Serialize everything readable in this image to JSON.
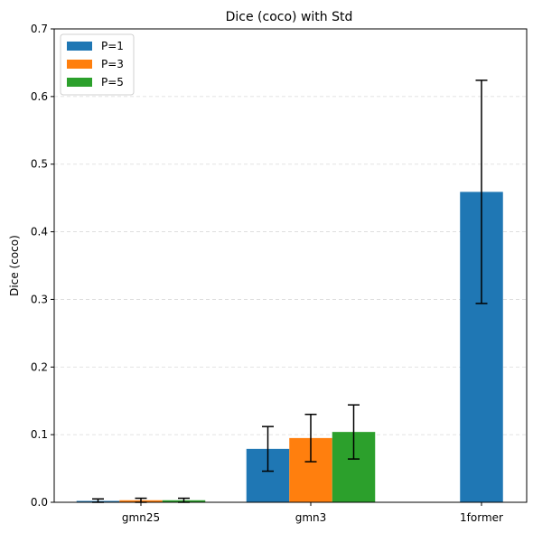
{
  "chart_data": {
    "type": "bar",
    "title": "Dice (coco) with Std",
    "xlabel": "",
    "ylabel": "Dice (coco)",
    "ylim": [
      0,
      0.7
    ],
    "yticks": [
      "0.0",
      "0.1",
      "0.2",
      "0.3",
      "0.4",
      "0.5",
      "0.6",
      "0.7"
    ],
    "grid": "y-dashed",
    "legend_position": "top-left",
    "categories": [
      "gmn25",
      "gmn3",
      "1former"
    ],
    "series": [
      {
        "name": "P=1",
        "color": "#1f77b4",
        "values": [
          0.002,
          0.079,
          0.459
        ],
        "std": [
          0.003,
          0.033,
          0.165
        ]
      },
      {
        "name": "P=3",
        "color": "#ff7f0e",
        "values": [
          0.003,
          0.095,
          null
        ],
        "std": [
          0.003,
          0.035,
          null
        ]
      },
      {
        "name": "P=5",
        "color": "#2ca02c",
        "values": [
          0.003,
          0.104,
          null
        ],
        "std": [
          0.003,
          0.04,
          null
        ]
      }
    ]
  }
}
